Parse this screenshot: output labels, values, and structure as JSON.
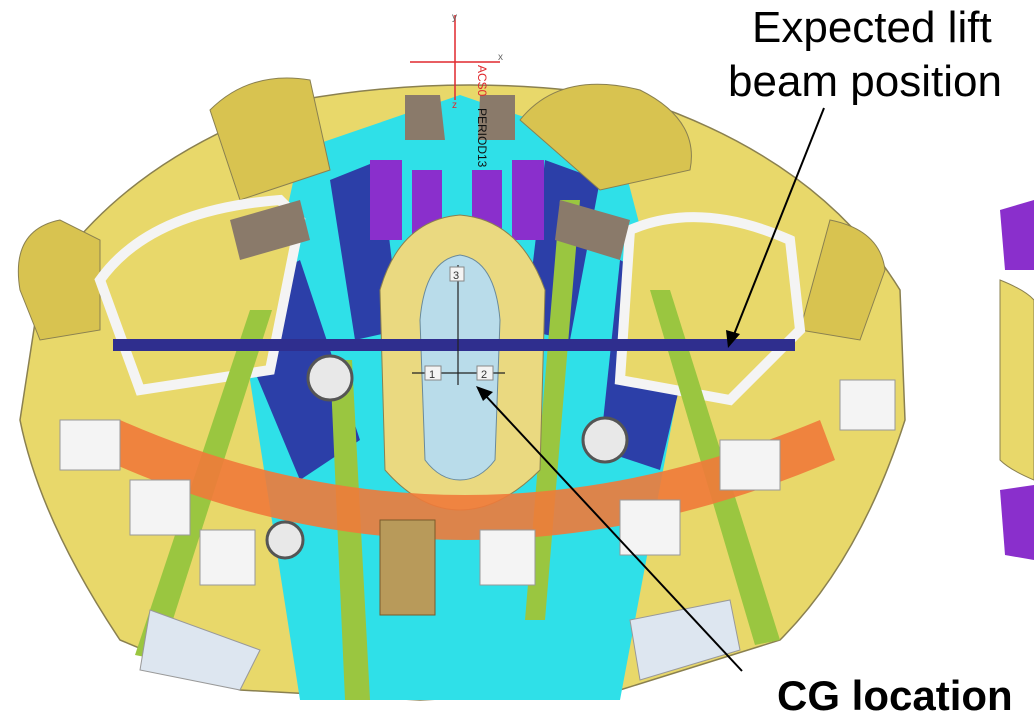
{
  "labels": {
    "lift_line1": "Expected lift",
    "lift_line2": "beam position",
    "cg": "CG location"
  },
  "triad": {
    "axis_y": "y",
    "axis_x": "x",
    "axis_z": "z",
    "csys_name": "ACS0",
    "period_name": "PERIOD13"
  },
  "cg_marker": {
    "tag_top": "3",
    "tag_left": "1",
    "tag_right": "2"
  },
  "colors": {
    "lift_beam": "#2f2e8e",
    "triad": "#e0292e",
    "cyan": "#2fe0e8",
    "yellow": "#e8d86a",
    "purple": "#8a2fcc",
    "navy": "#2c3fa8",
    "orange": "#f07a3a",
    "green": "#9ac640",
    "brown": "#8a7a6a",
    "lightblue": "#b9dcea",
    "white": "#f4f4f4"
  }
}
